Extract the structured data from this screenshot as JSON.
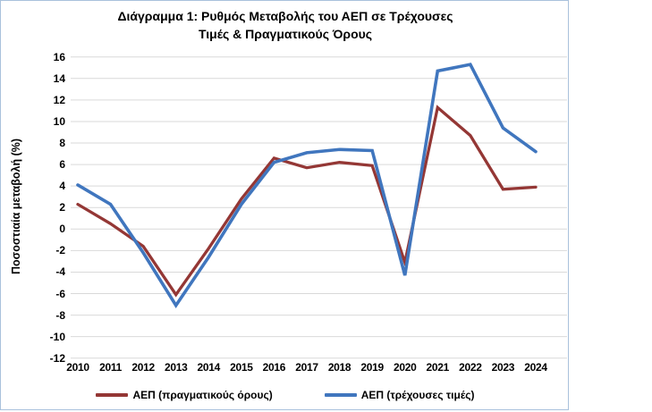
{
  "chart_data": {
    "type": "line",
    "title": "Διάγραμμα 1: Ρυθμός Μεταβολής του ΑΕΠ σε Τρέχουσες Τιμές & Πραγματικούς Όρους",
    "title_lines": [
      "Διάγραμμα 1: Ρυθμός Μεταβολής του ΑΕΠ σε Τρέχουσες",
      "Τιμές & Πραγματικούς Όρους"
    ],
    "ylabel": "Ποσοστιαία μεταβολή (%)",
    "xlabel": "",
    "categories": [
      "2010",
      "2011",
      "2012",
      "2013",
      "2014",
      "2015",
      "2016",
      "2017",
      "2018",
      "2019",
      "2020",
      "2021",
      "2022",
      "2023",
      "2024"
    ],
    "series": [
      {
        "name": "ΑΕΠ (πραγματικούς όρους)",
        "color": "#943735",
        "values": [
          2.3,
          0.5,
          -1.6,
          -6.1,
          -1.8,
          2.8,
          6.6,
          5.7,
          6.2,
          5.9,
          -3.1,
          11.3,
          8.7,
          3.7,
          3.9
        ]
      },
      {
        "name": "ΑΕΠ (τρέχουσες τιμές)",
        "color": "#4076BE",
        "values": [
          4.1,
          2.3,
          -2.2,
          -7.1,
          -2.6,
          2.3,
          6.2,
          7.1,
          7.4,
          7.3,
          -4.3,
          14.7,
          15.3,
          9.4,
          7.2
        ]
      }
    ],
    "ylim": [
      -12,
      16
    ],
    "ytick_step": 2,
    "grid": true,
    "gridline_color": "#d9d9d9",
    "legend_position": "bottom"
  }
}
